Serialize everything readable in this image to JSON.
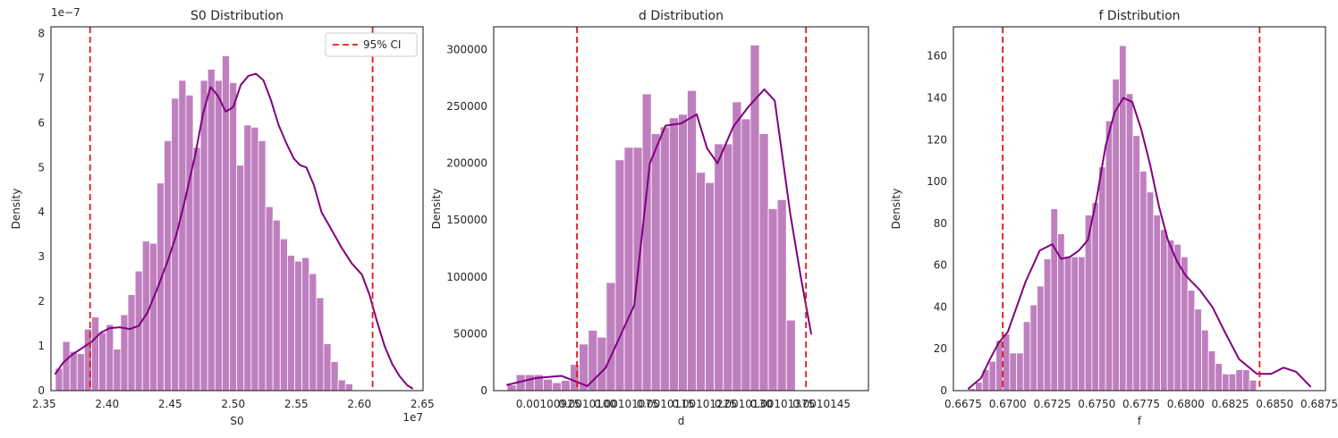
{
  "chart_data": [
    {
      "type": "bar",
      "title": "S0 Distribution",
      "xlabel": "S0",
      "ylabel": "Density",
      "x_offset_label": "1e7",
      "y_offset_label": "1e−7",
      "xlim": [
        2.3555,
        2.6505
      ],
      "ylim": [
        0,
        8.15
      ],
      "xticks": [
        2.35,
        2.4,
        2.45,
        2.5,
        2.55,
        2.6,
        2.65
      ],
      "xtick_labels": [
        "2.35",
        "2.40",
        "2.45",
        "2.50",
        "2.55",
        "2.60",
        "2.65"
      ],
      "yticks": [
        0,
        1,
        2,
        3,
        4,
        5,
        6,
        7,
        8
      ],
      "ytick_labels": [
        "0",
        "1",
        "2",
        "3",
        "4",
        "5",
        "6",
        "7",
        "8"
      ],
      "bin_start": 2.359,
      "bin_width": 0.00575,
      "values": [
        0.5,
        1.1,
        0.88,
        0.83,
        1.38,
        1.65,
        1.3,
        1.48,
        0.93,
        1.7,
        2.15,
        2.68,
        3.35,
        3.3,
        4.65,
        5.6,
        6.55,
        6.95,
        6.62,
        5.45,
        6.95,
        7.2,
        6.95,
        7.5,
        6.9,
        5.05,
        5.95,
        5.9,
        5.6,
        4.12,
        3.82,
        3.4,
        3.03,
        2.9,
        2.98,
        2.62,
        2.08,
        1.05,
        0.65,
        0.24,
        0.15
      ],
      "kde": [
        [
          2.359,
          0.38
        ],
        [
          2.365,
          0.62
        ],
        [
          2.372,
          0.8
        ],
        [
          2.38,
          0.95
        ],
        [
          2.388,
          1.1
        ],
        [
          2.395,
          1.3
        ],
        [
          2.402,
          1.4
        ],
        [
          2.41,
          1.42
        ],
        [
          2.418,
          1.38
        ],
        [
          2.425,
          1.45
        ],
        [
          2.432,
          1.75
        ],
        [
          2.44,
          2.3
        ],
        [
          2.448,
          2.9
        ],
        [
          2.455,
          3.5
        ],
        [
          2.462,
          4.3
        ],
        [
          2.47,
          5.3
        ],
        [
          2.476,
          6.2
        ],
        [
          2.482,
          6.8
        ],
        [
          2.488,
          6.6
        ],
        [
          2.494,
          6.25
        ],
        [
          2.5,
          6.35
        ],
        [
          2.506,
          6.85
        ],
        [
          2.512,
          7.05
        ],
        [
          2.518,
          7.1
        ],
        [
          2.524,
          6.95
        ],
        [
          2.53,
          6.5
        ],
        [
          2.536,
          5.95
        ],
        [
          2.542,
          5.55
        ],
        [
          2.548,
          5.2
        ],
        [
          2.553,
          5.05
        ],
        [
          2.558,
          5.0
        ],
        [
          2.564,
          4.6
        ],
        [
          2.57,
          4.0
        ],
        [
          2.578,
          3.6
        ],
        [
          2.586,
          3.2
        ],
        [
          2.594,
          2.85
        ],
        [
          2.602,
          2.6
        ],
        [
          2.608,
          2.15
        ],
        [
          2.614,
          1.55
        ],
        [
          2.62,
          1.0
        ],
        [
          2.626,
          0.6
        ],
        [
          2.632,
          0.32
        ],
        [
          2.638,
          0.12
        ],
        [
          2.642,
          0.05
        ]
      ],
      "ci_lines": [
        2.3865,
        2.6105
      ],
      "legend": [
        {
          "label": "95% CI",
          "color": "#e4161b",
          "style": "dashed"
        }
      ],
      "legend_position": "top-right",
      "grid": false
    },
    {
      "type": "bar",
      "title": "d Distribution",
      "xlabel": "d",
      "ylabel": "Density",
      "xlim": [
        0.0010082,
        0.0010154
      ],
      "ylim": [
        0,
        320000
      ],
      "xticks": [
        0.00100925,
        0.00101,
        0.00101075,
        0.0010115,
        0.00101225,
        0.001013,
        0.00101375,
        0.0010145
      ],
      "xtick_labels": [
        "0.00100925",
        "0.0010100",
        "0.00101075",
        "0.0010115",
        "0.00101225",
        "0.0010130",
        "0.00101375",
        "0.0010145"
      ],
      "xtick_label_line": "0.00100925 0.0010100.0010107 5 0.0010115 0.0010122 5 0.0010130 0.0010137 5 0.0010145",
      "xtick_label_text": "0.001009 0.001010 0.001011 0.001012 0.001013 0.001014 0.001015",
      "yticks": [
        0,
        50000,
        100000,
        150000,
        200000,
        250000,
        300000
      ],
      "ytick_labels": [
        "0",
        "50000",
        "100000",
        "150000",
        "200000",
        "250000",
        "300000"
      ],
      "bin_start": 0.00100846,
      "bin_width": 1.73e-07,
      "values": [
        5000,
        14000,
        14000,
        14000,
        10000,
        7000,
        9000,
        23000,
        41000,
        53000,
        47000,
        95000,
        203000,
        214000,
        214000,
        261000,
        226000,
        232000,
        240000,
        243000,
        264000,
        192000,
        183000,
        217000,
        217000,
        254000,
        239000,
        304000,
        226000,
        160000,
        168000,
        62000
      ],
      "kde": [
        [
          0.00100846,
          5000
        ],
        [
          0.001009,
          11000
        ],
        [
          0.0010095,
          13000
        ],
        [
          0.00101,
          4000
        ],
        [
          0.00101035,
          20000
        ],
        [
          0.0010106,
          45000
        ],
        [
          0.0010109,
          75000
        ],
        [
          0.0010112,
          200000
        ],
        [
          0.0010115,
          233000
        ],
        [
          0.0010118,
          235000
        ],
        [
          0.0010121,
          243000
        ],
        [
          0.0010123,
          213000
        ],
        [
          0.0010125,
          200000
        ],
        [
          0.0010128,
          232000
        ],
        [
          0.0010131,
          250000
        ],
        [
          0.0010134,
          265000
        ],
        [
          0.0010136,
          255000
        ],
        [
          0.0010139,
          155000
        ],
        [
          0.0010141,
          100000
        ],
        [
          0.0010143,
          50000
        ]
      ],
      "ci_lines": [
        0.0010098,
        0.0010142
      ],
      "grid": false
    },
    {
      "type": "bar",
      "title": "f Distribution",
      "xlabel": "f",
      "ylabel": "Density",
      "xlim": [
        0.66695,
        0.68785
      ],
      "ylim": [
        0,
        174
      ],
      "xticks": [
        0.6675,
        0.67,
        0.6725,
        0.675,
        0.6775,
        0.68,
        0.6825,
        0.685,
        0.6875
      ],
      "xtick_labels": [
        "0.6675",
        "0.6700",
        "0.6725",
        "0.6750",
        "0.6775",
        "0.6800",
        "0.6825",
        "0.6850",
        "0.6875"
      ],
      "yticks": [
        0,
        20,
        40,
        60,
        80,
        100,
        120,
        140,
        160
      ],
      "ytick_labels": [
        "0",
        "20",
        "40",
        "60",
        "80",
        "100",
        "120",
        "140",
        "160"
      ],
      "bin_start": 0.6678,
      "bin_width": 0.000385,
      "values": [
        1,
        4,
        10,
        14,
        24,
        27,
        18,
        18,
        33,
        41,
        50,
        63,
        87,
        75,
        64,
        64,
        64,
        84,
        90,
        107,
        129,
        149,
        165,
        142,
        122,
        105,
        95,
        84,
        77,
        72,
        70,
        64,
        48,
        39,
        29,
        19,
        13,
        8,
        8,
        10,
        10,
        5
      ],
      "kde": [
        [
          0.6678,
          1
        ],
        [
          0.6685,
          6
        ],
        [
          0.669,
          15
        ],
        [
          0.6695,
          23
        ],
        [
          0.67,
          28
        ],
        [
          0.6705,
          40
        ],
        [
          0.671,
          52
        ],
        [
          0.6718,
          67
        ],
        [
          0.6725,
          70
        ],
        [
          0.673,
          63
        ],
        [
          0.6735,
          64
        ],
        [
          0.674,
          67
        ],
        [
          0.6745,
          72
        ],
        [
          0.675,
          92
        ],
        [
          0.6755,
          117
        ],
        [
          0.676,
          133
        ],
        [
          0.6765,
          140
        ],
        [
          0.677,
          138
        ],
        [
          0.6775,
          125
        ],
        [
          0.678,
          108
        ],
        [
          0.6785,
          88
        ],
        [
          0.679,
          72
        ],
        [
          0.6795,
          62
        ],
        [
          0.68,
          55
        ],
        [
          0.6808,
          48
        ],
        [
          0.6815,
          40
        ],
        [
          0.6822,
          28
        ],
        [
          0.683,
          15
        ],
        [
          0.684,
          8
        ],
        [
          0.6848,
          8
        ],
        [
          0.6855,
          11
        ],
        [
          0.6862,
          9
        ],
        [
          0.687,
          2
        ]
      ],
      "ci_lines": [
        0.66972,
        0.68415
      ],
      "grid": false
    }
  ],
  "colors": {
    "bar_fill": "#bf7fbf",
    "bar_edge": "#ffffff",
    "kde_line": "#800080",
    "ci_line": "#e4161b",
    "axes_edge": "#262626",
    "text": "#262626"
  }
}
